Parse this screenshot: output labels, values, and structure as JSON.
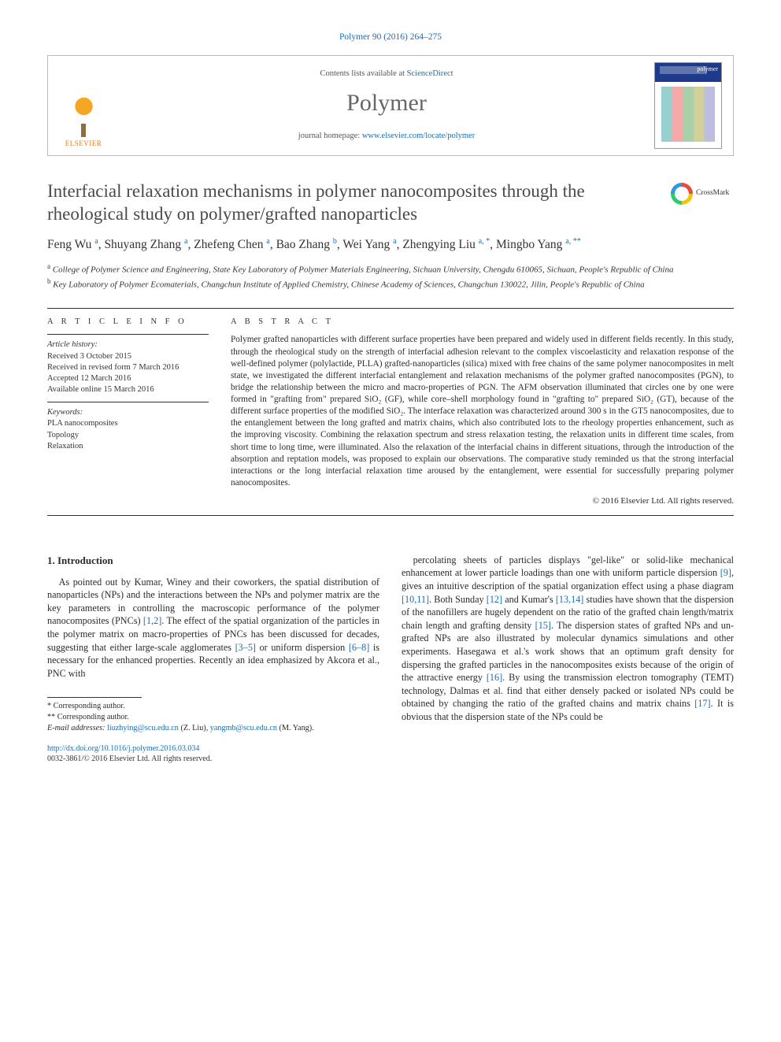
{
  "citation": "Polymer 90 (2016) 264–275",
  "header": {
    "contents_prefix": "Contents lists available at ",
    "contents_link": "ScienceDirect",
    "journal_name": "Polymer",
    "homepage_prefix": "journal homepage: ",
    "homepage_link": "www.elsevier.com/locate/polymer",
    "publisher": "ELSEVIER",
    "cover_brand": "polymer"
  },
  "crossmark": "CrossMark",
  "title": "Interfacial relaxation mechanisms in polymer nanocomposites through the rheological study on polymer/grafted nanoparticles",
  "authors_html": "Feng Wu <sup>a</sup>, Shuyang Zhang <sup>a</sup>, Zhefeng Chen <sup>a</sup>, Bao Zhang <sup>b</sup>, Wei Yang <sup>a</sup>, Zhengying Liu <sup>a, *</sup>, Mingbo Yang <sup>a, **</sup>",
  "affiliations": {
    "a": "College of Polymer Science and Engineering, State Key Laboratory of Polymer Materials Engineering, Sichuan University, Chengdu 610065, Sichuan, People's Republic of China",
    "b": "Key Laboratory of Polymer Ecomaterials, Changchun Institute of Applied Chemistry, Chinese Academy of Sciences, Changchun 130022, Jilin, People's Republic of China"
  },
  "article_info": {
    "heading": "A R T I C L E   I N F O",
    "history_label": "Article history:",
    "received": "Received 3 October 2015",
    "revised": "Received in revised form 7 March 2016",
    "accepted": "Accepted 12 March 2016",
    "online": "Available online 15 March 2016",
    "keywords_label": "Keywords:",
    "keywords": [
      "PLA nanocomposites",
      "Topology",
      "Relaxation"
    ]
  },
  "abstract": {
    "heading": "A B S T R A C T",
    "text": "Polymer grafted nanoparticles with different surface properties have been prepared and widely used in different fields recently. In this study, through the rheological study on the strength of interfacial adhesion relevant to the complex viscoelasticity and relaxation response of the well-defined polymer (polylactide, PLLA) grafted-nanoparticles (silica) mixed with free chains of the same polymer nanocomposites in melt state, we investigated the different interfacial entanglement and relaxation mechanisms of the polymer grafted nanocomposites (PGN), to bridge the relationship between the micro and macro-properties of PGN. The AFM observation illuminated that circles one by one were formed in \"grafting from\" prepared SiO₂ (GF), while core–shell morphology found in \"grafting to\" prepared SiO₂ (GT), because of the different surface properties of the modified SiO₂. The interface relaxation was characterized around 300 s in the GT5 nanocomposites, due to the entanglement between the long grafted and matrix chains, which also contributed lots to the rheology properties enhancement, such as the improving viscosity. Combining the relaxation spectrum and stress relaxation testing, the relaxation units in different time scales, from short time to long time, were illuminated. Also the relaxation of the interfacial chains in different situations, through the introduction of the absorption and reptation models, was proposed to explain our observations. The comparative study reminded us that the strong interfacial interactions or the long interfacial relaxation time aroused by the entanglement, were essential for successfully preparing polymer nanocomposites.",
    "copyright": "© 2016 Elsevier Ltd. All rights reserved."
  },
  "intro": {
    "heading": "1. Introduction",
    "p1": "As pointed out by Kumar, Winey and their coworkers, the spatial distribution of nanoparticles (NPs) and the interactions between the NPs and polymer matrix are the key parameters in controlling the macroscopic performance of the polymer nanocomposites (PNCs) [1,2]. The effect of the spatial organization of the particles in the polymer matrix on macro-properties of PNCs has been discussed for decades, suggesting that either large-scale agglomerates [3–5] or uniform dispersion [6–8] is necessary for the enhanced properties. Recently an idea emphasized by Akcora et al., PNC with",
    "p2": "percolating sheets of particles displays \"gel-like\" or solid-like mechanical enhancement at lower particle loadings than one with uniform particle dispersion [9], gives an intuitive description of the spatial organization effect using a phase diagram [10,11]. Both Sunday [12] and Kumar's [13,14] studies have shown that the dispersion of the nanofillers are hugely dependent on the ratio of the grafted chain length/matrix chain length and grafting density [15]. The dispersion states of grafted NPs and un-grafted NPs are also illustrated by molecular dynamics simulations and other experiments. Hasegawa et al.'s work shows that an optimum graft density for dispersing the grafted particles in the nanocomposites exists because of the origin of the attractive energy [16]. By using the transmission electron tomography (TEMT) technology, Dalmas et al. find that either densely packed or isolated NPs could be obtained by changing the ratio of the grafted chains and matrix chains [17]. It is obvious that the dispersion state of the NPs could be"
  },
  "footnotes": {
    "c1": "* Corresponding author.",
    "c2": "** Corresponding author.",
    "emails_label": "E-mail addresses:",
    "email1": "liuzhying@scu.edu.cn",
    "email1_who": "(Z. Liu),",
    "email2": "yangmb@scu.edu.cn",
    "email2_who": "(M. Yang)."
  },
  "footer": {
    "doi": "http://dx.doi.org/10.1016/j.polymer.2016.03.034",
    "issn_line": "0032-3861/© 2016 Elsevier Ltd. All rights reserved."
  },
  "colors": {
    "link": "#1b6db5",
    "text": "#2b2b2b",
    "muted": "#666666",
    "rule": "#333333"
  }
}
